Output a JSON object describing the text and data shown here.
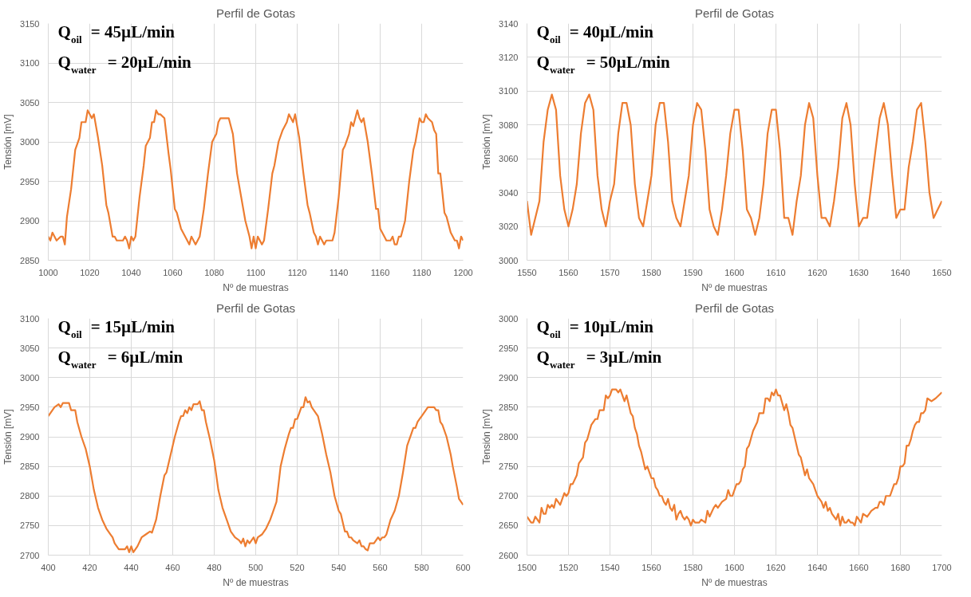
{
  "chart_data": [
    {
      "type": "line",
      "title": "Perfil de Gotas",
      "xlabel": "Nº de muestras",
      "ylabel": "Tensión [mV]",
      "grid": true,
      "annotations": [
        "Q$_{oil}$ = 45µL/min",
        "Q$_{water}$ = 20µL/min"
      ],
      "xlim": [
        1000,
        1200
      ],
      "xticks": [
        1000,
        1020,
        1040,
        1060,
        1080,
        1100,
        1120,
        1140,
        1160,
        1180,
        1200
      ],
      "ylim": [
        2850,
        3150
      ],
      "yticks": [
        2850,
        2900,
        2950,
        3000,
        3050,
        3100,
        3150
      ],
      "x": [
        1000,
        1001,
        1002,
        1004,
        1006,
        1007,
        1008,
        1009,
        1011,
        1013,
        1015,
        1016,
        1018,
        1019,
        1021,
        1022,
        1024,
        1026,
        1028,
        1029,
        1031,
        1032,
        1033,
        1036,
        1037,
        1038,
        1039,
        1040,
        1041,
        1042,
        1044,
        1046,
        1047,
        1049,
        1050,
        1051,
        1052,
        1053,
        1054,
        1056,
        1058,
        1059,
        1061,
        1062,
        1064,
        1067,
        1068,
        1069,
        1070,
        1071,
        1073,
        1075,
        1077,
        1079,
        1081,
        1082,
        1083,
        1087,
        1089,
        1091,
        1093,
        1095,
        1097,
        1098,
        1099,
        1100,
        1101,
        1103,
        1104,
        1106,
        1108,
        1109,
        1111,
        1113,
        1115,
        1116,
        1118,
        1119,
        1121,
        1123,
        1125,
        1126,
        1128,
        1129,
        1130,
        1131,
        1132,
        1133,
        1134,
        1137,
        1138,
        1140,
        1142,
        1143,
        1145,
        1146,
        1147,
        1149,
        1150,
        1151,
        1152,
        1154,
        1156,
        1158,
        1159,
        1160,
        1162,
        1163,
        1165,
        1166,
        1167,
        1168,
        1169,
        1170,
        1172,
        1174,
        1176,
        1177,
        1178,
        1179,
        1180,
        1181,
        1182,
        1183,
        1185,
        1186,
        1187,
        1188,
        1189,
        1191,
        1192,
        1194,
        1196,
        1197,
        1198,
        1199,
        1200
      ],
      "series": [
        {
          "color": "#ed7d31",
          "values": [
            2880,
            2875,
            2885,
            2875,
            2880,
            2880,
            2870,
            2905,
            2940,
            2990,
            3005,
            3025,
            3025,
            3040,
            3030,
            3035,
            3005,
            2970,
            2920,
            2910,
            2880,
            2880,
            2875,
            2875,
            2880,
            2875,
            2865,
            2880,
            2875,
            2880,
            2930,
            2970,
            2995,
            3005,
            3025,
            3025,
            3040,
            3035,
            3035,
            3030,
            2985,
            2965,
            2915,
            2910,
            2890,
            2875,
            2870,
            2880,
            2875,
            2870,
            2880,
            2915,
            2960,
            3000,
            3010,
            3025,
            3030,
            3030,
            3010,
            2960,
            2930,
            2900,
            2880,
            2865,
            2880,
            2865,
            2880,
            2870,
            2875,
            2915,
            2960,
            2970,
            3000,
            3015,
            3025,
            3035,
            3025,
            3035,
            3005,
            2960,
            2920,
            2910,
            2885,
            2880,
            2870,
            2880,
            2875,
            2870,
            2875,
            2875,
            2885,
            2930,
            2990,
            2995,
            3010,
            3025,
            3020,
            3040,
            3030,
            3025,
            3030,
            3000,
            2960,
            2915,
            2915,
            2890,
            2880,
            2875,
            2875,
            2880,
            2870,
            2870,
            2880,
            2880,
            2900,
            2950,
            2990,
            3000,
            3015,
            3030,
            3025,
            3025,
            3035,
            3030,
            3025,
            3015,
            3010,
            2960,
            2960,
            2910,
            2905,
            2885,
            2875,
            2875,
            2865,
            2880,
            2875
          ]
        }
      ]
    },
    {
      "type": "line",
      "title": "Perfil de Gotas",
      "xlabel": "Nº de muestras",
      "ylabel": "Tensión [mV]",
      "grid": true,
      "annotations": [
        "Q$_{oil}$ = 40µL/min",
        "Q$_{water}$ = 50µL/min"
      ],
      "xlim": [
        1550,
        1650
      ],
      "xticks": [
        1550,
        1560,
        1570,
        1580,
        1590,
        1600,
        1610,
        1620,
        1630,
        1640,
        1650
      ],
      "ylim": [
        3000,
        3140
      ],
      "yticks": [
        3000,
        3020,
        3040,
        3060,
        3080,
        3100,
        3120,
        3140
      ],
      "x": [
        1550,
        1551,
        1552,
        1553,
        1554,
        1555,
        1556,
        1557,
        1558,
        1559,
        1560,
        1561,
        1562,
        1563,
        1564,
        1565,
        1566,
        1567,
        1568,
        1569,
        1570,
        1571,
        1572,
        1573,
        1574,
        1575,
        1576,
        1577,
        1578,
        1579,
        1580,
        1581,
        1582,
        1583,
        1584,
        1585,
        1586,
        1587,
        1588,
        1589,
        1590,
        1591,
        1592,
        1593,
        1594,
        1595,
        1596,
        1597,
        1598,
        1599,
        1600,
        1601,
        1602,
        1603,
        1604,
        1605,
        1606,
        1607,
        1608,
        1609,
        1610,
        1611,
        1612,
        1613,
        1614,
        1615,
        1616,
        1617,
        1618,
        1619,
        1620,
        1621,
        1622,
        1623,
        1624,
        1625,
        1626,
        1627,
        1628,
        1629,
        1630,
        1631,
        1632,
        1633,
        1634,
        1635,
        1636,
        1637,
        1638,
        1639,
        1640,
        1641,
        1642,
        1643,
        1644,
        1645,
        1646,
        1647,
        1648,
        1649,
        1650
      ],
      "series": [
        {
          "color": "#ed7d31",
          "values": [
            3035,
            3015,
            3025,
            3035,
            3070,
            3089,
            3098,
            3089,
            3050,
            3030,
            3020,
            3030,
            3045,
            3075,
            3093,
            3098,
            3089,
            3050,
            3030,
            3020,
            3035,
            3045,
            3075,
            3093,
            3093,
            3080,
            3045,
            3025,
            3020,
            3035,
            3050,
            3080,
            3093,
            3093,
            3070,
            3035,
            3025,
            3020,
            3035,
            3050,
            3080,
            3093,
            3089,
            3065,
            3030,
            3020,
            3015,
            3030,
            3050,
            3075,
            3089,
            3089,
            3065,
            3030,
            3025,
            3015,
            3025,
            3045,
            3075,
            3089,
            3089,
            3065,
            3025,
            3025,
            3015,
            3035,
            3050,
            3080,
            3093,
            3084,
            3050,
            3025,
            3025,
            3020,
            3035,
            3055,
            3084,
            3093,
            3080,
            3045,
            3020,
            3025,
            3025,
            3045,
            3065,
            3084,
            3093,
            3080,
            3050,
            3025,
            3030,
            3030,
            3055,
            3070,
            3089,
            3093,
            3070,
            3040,
            3025,
            3030,
            3035
          ]
        }
      ]
    },
    {
      "type": "line",
      "title": "Perfil de Gotas",
      "xlabel": "Nº de muestras",
      "ylabel": "Tensión [mV]",
      "grid": true,
      "annotations": [
        "Q$_{oil}$ = 15µL/min",
        "Q$_{water}$ = 6µL/min"
      ],
      "xlim": [
        400,
        600
      ],
      "xticks": [
        400,
        420,
        440,
        460,
        480,
        500,
        520,
        540,
        560,
        580,
        600
      ],
      "ylim": [
        2700,
        3100
      ],
      "yticks": [
        2700,
        2750,
        2800,
        2850,
        2900,
        2950,
        3000,
        3050,
        3100
      ],
      "x": [
        400,
        401,
        403,
        405,
        406,
        407,
        410,
        411,
        413,
        414,
        416,
        418,
        420,
        422,
        424,
        426,
        428,
        430,
        431,
        432,
        433,
        434,
        437,
        438,
        439,
        440,
        441,
        443,
        445,
        447,
        449,
        450,
        452,
        454,
        456,
        457,
        459,
        461,
        463,
        464,
        465,
        466,
        467,
        468,
        469,
        470,
        472,
        473,
        474,
        475,
        476,
        478,
        480,
        482,
        484,
        486,
        488,
        490,
        492,
        493,
        494,
        495,
        496,
        497,
        499,
        500,
        501,
        503,
        505,
        507,
        508,
        510,
        512,
        514,
        516,
        517,
        518,
        519,
        520,
        522,
        523,
        524,
        525,
        526,
        527,
        528,
        530,
        532,
        534,
        536,
        538,
        540,
        541,
        542,
        543,
        544,
        545,
        546,
        547,
        549,
        550,
        551,
        552,
        553,
        554,
        555,
        556,
        557,
        558,
        559,
        560,
        561,
        562,
        563,
        565,
        567,
        569,
        571,
        573,
        575,
        576,
        577,
        578,
        579,
        580,
        581,
        583,
        585,
        586,
        587,
        588,
        589,
        590,
        592,
        594,
        595,
        597,
        598,
        600
      ],
      "series": [
        {
          "color": "#ed7d31",
          "values": [
            2935,
            2940,
            2950,
            2955,
            2950,
            2957,
            2957,
            2945,
            2945,
            2925,
            2900,
            2880,
            2850,
            2810,
            2780,
            2760,
            2745,
            2735,
            2730,
            2720,
            2715,
            2710,
            2710,
            2715,
            2705,
            2715,
            2705,
            2715,
            2730,
            2735,
            2740,
            2738,
            2760,
            2800,
            2835,
            2840,
            2870,
            2900,
            2925,
            2935,
            2935,
            2945,
            2940,
            2950,
            2945,
            2955,
            2955,
            2960,
            2945,
            2945,
            2925,
            2895,
            2860,
            2810,
            2780,
            2760,
            2740,
            2730,
            2725,
            2720,
            2728,
            2715,
            2725,
            2720,
            2730,
            2720,
            2730,
            2735,
            2745,
            2760,
            2770,
            2790,
            2850,
            2880,
            2905,
            2915,
            2915,
            2930,
            2930,
            2950,
            2950,
            2967,
            2958,
            2960,
            2950,
            2945,
            2935,
            2905,
            2870,
            2840,
            2800,
            2775,
            2770,
            2755,
            2740,
            2740,
            2730,
            2730,
            2725,
            2720,
            2725,
            2715,
            2715,
            2710,
            2708,
            2720,
            2720,
            2720,
            2725,
            2730,
            2725,
            2730,
            2730,
            2735,
            2760,
            2775,
            2800,
            2840,
            2885,
            2905,
            2915,
            2915,
            2925,
            2930,
            2935,
            2940,
            2950,
            2950,
            2950,
            2945,
            2945,
            2925,
            2920,
            2900,
            2870,
            2850,
            2815,
            2795,
            2785
          ]
        }
      ]
    },
    {
      "type": "line",
      "title": "Perfil de Gotas",
      "xlabel": "Nº de muestras",
      "ylabel": "Tensión [mV]",
      "grid": true,
      "annotations": [
        "Q$_{oil}$ = 10µL/min",
        "Q$_{water}$ = 3µL/min"
      ],
      "xlim": [
        1500,
        1700
      ],
      "xticks": [
        1500,
        1520,
        1540,
        1560,
        1580,
        1600,
        1620,
        1640,
        1660,
        1680,
        1700
      ],
      "ylim": [
        2600,
        3000
      ],
      "yticks": [
        2600,
        2650,
        2700,
        2750,
        2800,
        2850,
        2900,
        2950,
        3000
      ],
      "x": [
        1500,
        1502,
        1503,
        1504,
        1506,
        1507,
        1508,
        1509,
        1510,
        1511,
        1512,
        1513,
        1514,
        1516,
        1518,
        1519,
        1520,
        1521,
        1522,
        1524,
        1525,
        1527,
        1528,
        1529,
        1531,
        1533,
        1534,
        1535,
        1537,
        1538,
        1539,
        1540,
        1541,
        1543,
        1544,
        1545,
        1547,
        1548,
        1550,
        1551,
        1552,
        1553,
        1554,
        1555,
        1557,
        1558,
        1560,
        1561,
        1562,
        1563,
        1564,
        1565,
        1566,
        1567,
        1568,
        1569,
        1570,
        1571,
        1572,
        1573,
        1574,
        1575,
        1576,
        1577,
        1578,
        1579,
        1580,
        1581,
        1583,
        1584,
        1586,
        1587,
        1588,
        1590,
        1591,
        1592,
        1594,
        1596,
        1597,
        1598,
        1599,
        1601,
        1602,
        1603,
        1604,
        1605,
        1606,
        1607,
        1609,
        1611,
        1612,
        1614,
        1615,
        1616,
        1617,
        1618,
        1619,
        1620,
        1621,
        1622,
        1624,
        1625,
        1626,
        1627,
        1628,
        1629,
        1630,
        1631,
        1632,
        1633,
        1634,
        1635,
        1636,
        1637,
        1638,
        1639,
        1640,
        1641,
        1642,
        1643,
        1644,
        1645,
        1646,
        1647,
        1648,
        1649,
        1650,
        1651,
        1652,
        1653,
        1654,
        1655,
        1656,
        1657,
        1658,
        1659,
        1660,
        1661,
        1662,
        1664,
        1665,
        1666,
        1668,
        1669,
        1670,
        1671,
        1672,
        1673,
        1675,
        1676,
        1677,
        1678,
        1679,
        1680,
        1681,
        1682,
        1683,
        1684,
        1685,
        1686,
        1687,
        1688,
        1689,
        1690,
        1691,
        1692,
        1693,
        1695,
        1697,
        1700
      ],
      "series": [
        {
          "color": "#ed7d31",
          "values": [
            2665,
            2655,
            2655,
            2665,
            2655,
            2680,
            2670,
            2670,
            2685,
            2680,
            2685,
            2680,
            2695,
            2685,
            2705,
            2700,
            2705,
            2720,
            2720,
            2735,
            2755,
            2765,
            2790,
            2795,
            2820,
            2830,
            2830,
            2845,
            2845,
            2870,
            2865,
            2870,
            2880,
            2880,
            2875,
            2880,
            2860,
            2870,
            2840,
            2835,
            2815,
            2805,
            2785,
            2775,
            2745,
            2750,
            2730,
            2730,
            2715,
            2710,
            2700,
            2700,
            2690,
            2685,
            2695,
            2680,
            2675,
            2685,
            2660,
            2670,
            2675,
            2665,
            2660,
            2665,
            2660,
            2650,
            2660,
            2655,
            2655,
            2660,
            2655,
            2675,
            2665,
            2680,
            2685,
            2680,
            2690,
            2695,
            2710,
            2700,
            2700,
            2720,
            2720,
            2725,
            2745,
            2750,
            2780,
            2785,
            2810,
            2825,
            2840,
            2840,
            2865,
            2865,
            2860,
            2875,
            2870,
            2880,
            2870,
            2870,
            2845,
            2855,
            2840,
            2820,
            2815,
            2800,
            2785,
            2770,
            2765,
            2750,
            2735,
            2745,
            2730,
            2725,
            2720,
            2710,
            2700,
            2695,
            2690,
            2680,
            2690,
            2675,
            2680,
            2670,
            2665,
            2660,
            2670,
            2650,
            2665,
            2655,
            2655,
            2660,
            2655,
            2655,
            2650,
            2665,
            2660,
            2655,
            2670,
            2665,
            2670,
            2675,
            2680,
            2680,
            2690,
            2690,
            2685,
            2700,
            2700,
            2710,
            2720,
            2720,
            2730,
            2750,
            2750,
            2755,
            2785,
            2785,
            2795,
            2810,
            2820,
            2825,
            2825,
            2840,
            2840,
            2845,
            2865,
            2860,
            2865,
            2875
          ]
        }
      ]
    }
  ]
}
